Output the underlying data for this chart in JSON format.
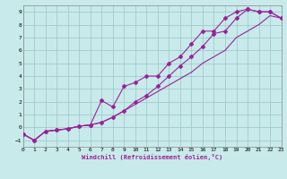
{
  "xlabel": "Windchill (Refroidissement éolien,°C)",
  "bg_color": "#c8eaea",
  "grid_color": "#a0cccc",
  "line_color": "#992299",
  "xlim": [
    0,
    23
  ],
  "ylim": [
    -1.5,
    9.5
  ],
  "xticks": [
    0,
    1,
    2,
    3,
    4,
    5,
    6,
    7,
    8,
    9,
    10,
    11,
    12,
    13,
    14,
    15,
    16,
    17,
    18,
    19,
    20,
    21,
    22,
    23
  ],
  "yticks": [
    -1,
    0,
    1,
    2,
    3,
    4,
    5,
    6,
    7,
    8,
    9
  ],
  "line_upper_x": [
    0,
    1,
    2,
    3,
    4,
    5,
    6,
    7,
    8,
    9,
    10,
    11,
    12,
    13,
    14,
    15,
    16,
    17,
    18,
    19,
    20,
    21,
    22,
    23
  ],
  "line_upper_y": [
    -0.5,
    -1.0,
    -0.3,
    -0.2,
    -0.1,
    0.1,
    0.2,
    2.1,
    1.6,
    3.2,
    3.5,
    4.0,
    4.0,
    5.0,
    5.5,
    6.5,
    7.5,
    7.5,
    8.5,
    9.0,
    9.2,
    9.0,
    9.0,
    8.5
  ],
  "line_lower_x": [
    0,
    1,
    2,
    3,
    4,
    5,
    6,
    7,
    8,
    9,
    10,
    11,
    12,
    13,
    14,
    15,
    16,
    17,
    18,
    19,
    20,
    21,
    22,
    23
  ],
  "line_lower_y": [
    -0.5,
    -1.0,
    -0.3,
    -0.2,
    -0.1,
    0.1,
    0.2,
    0.4,
    0.8,
    1.3,
    1.8,
    2.3,
    2.8,
    3.3,
    3.8,
    4.3,
    5.0,
    5.5,
    6.0,
    7.0,
    7.5,
    8.0,
    8.7,
    8.5
  ],
  "line_mid_x": [
    0,
    1,
    2,
    3,
    4,
    5,
    6,
    7,
    8,
    9,
    10,
    11,
    12,
    13,
    14,
    15,
    16,
    17,
    18,
    19,
    20,
    21,
    22,
    23
  ],
  "line_mid_y": [
    -0.5,
    -1.0,
    -0.3,
    -0.2,
    -0.1,
    0.1,
    0.2,
    0.4,
    0.8,
    1.3,
    2.0,
    2.5,
    3.2,
    4.0,
    4.8,
    5.5,
    6.3,
    7.3,
    7.5,
    8.5,
    9.2,
    9.0,
    9.0,
    8.5
  ]
}
